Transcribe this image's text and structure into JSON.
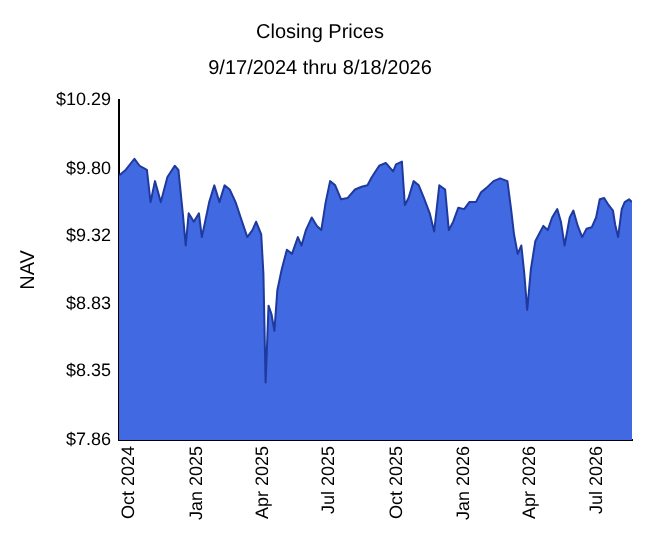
{
  "chart_data": {
    "type": "area",
    "title": "Closing Prices",
    "subtitle": "9/17/2024 thru 8/18/2026",
    "ylabel": "NAV",
    "x": [
      "2024-09-17",
      "2024-09-26",
      "2024-10-08",
      "2024-10-15",
      "2024-10-25",
      "2024-10-30",
      "2024-11-05",
      "2024-11-13",
      "2024-11-22",
      "2024-12-02",
      "2024-12-07",
      "2024-12-13",
      "2024-12-17",
      "2024-12-21",
      "2024-12-28",
      "2025-01-04",
      "2025-01-08",
      "2025-01-18",
      "2025-01-25",
      "2025-02-01",
      "2025-02-08",
      "2025-02-15",
      "2025-02-23",
      "2025-03-02",
      "2025-03-11",
      "2025-03-18",
      "2025-03-23",
      "2025-03-30",
      "2025-04-02",
      "2025-04-05",
      "2025-04-09",
      "2025-04-13",
      "2025-04-17",
      "2025-04-21",
      "2025-04-27",
      "2025-05-04",
      "2025-05-11",
      "2025-05-19",
      "2025-05-24",
      "2025-05-30",
      "2025-06-07",
      "2025-06-14",
      "2025-06-20",
      "2025-06-26",
      "2025-07-02",
      "2025-07-09",
      "2025-07-17",
      "2025-07-26",
      "2025-08-05",
      "2025-08-14",
      "2025-08-22",
      "2025-08-28",
      "2025-09-07",
      "2025-09-16",
      "2025-09-26",
      "2025-09-30",
      "2025-10-08",
      "2025-10-12",
      "2025-10-17",
      "2025-10-24",
      "2025-10-31",
      "2025-11-07",
      "2025-11-15",
      "2025-11-21",
      "2025-11-28",
      "2025-12-06",
      "2025-12-11",
      "2025-12-17",
      "2025-12-24",
      "2026-01-01",
      "2026-01-08",
      "2026-01-17",
      "2026-01-24",
      "2026-01-31",
      "2026-02-10",
      "2026-02-19",
      "2026-03-01",
      "2026-03-06",
      "2026-03-10",
      "2026-03-15",
      "2026-03-20",
      "2026-03-24",
      "2026-03-28",
      "2026-04-02",
      "2026-04-08",
      "2026-04-13",
      "2026-04-19",
      "2026-04-25",
      "2026-05-01",
      "2026-05-08",
      "2026-05-13",
      "2026-05-18",
      "2026-05-25",
      "2026-05-30",
      "2026-06-05",
      "2026-06-11",
      "2026-06-17",
      "2026-06-24",
      "2026-06-30",
      "2026-07-05",
      "2026-07-11",
      "2026-07-17",
      "2026-07-23",
      "2026-07-26",
      "2026-07-30",
      "2026-08-04",
      "2026-08-08",
      "2026-08-14",
      "2026-08-18"
    ],
    "series": [
      {
        "color": "#4169e1",
        "values": [
          9.75,
          9.79,
          9.87,
          9.82,
          9.79,
          9.56,
          9.71,
          9.56,
          9.74,
          9.82,
          9.79,
          9.48,
          9.25,
          9.48,
          9.42,
          9.48,
          9.31,
          9.56,
          9.68,
          9.56,
          9.68,
          9.65,
          9.56,
          9.45,
          9.31,
          9.36,
          9.42,
          9.33,
          9.05,
          8.27,
          8.82,
          8.76,
          8.64,
          8.93,
          9.08,
          9.22,
          9.19,
          9.31,
          9.25,
          9.36,
          9.45,
          9.39,
          9.36,
          9.56,
          9.71,
          9.68,
          9.58,
          9.59,
          9.65,
          9.67,
          9.68,
          9.74,
          9.82,
          9.84,
          9.78,
          9.83,
          9.85,
          9.54,
          9.59,
          9.71,
          9.68,
          9.59,
          9.48,
          9.35,
          9.68,
          9.65,
          9.36,
          9.42,
          9.52,
          9.51,
          9.56,
          9.56,
          9.63,
          9.66,
          9.71,
          9.73,
          9.71,
          9.51,
          9.33,
          9.19,
          9.25,
          9.05,
          8.79,
          9.08,
          9.28,
          9.33,
          9.39,
          9.36,
          9.45,
          9.51,
          9.42,
          9.25,
          9.45,
          9.5,
          9.39,
          9.31,
          9.37,
          9.38,
          9.45,
          9.58,
          9.59,
          9.54,
          9.5,
          9.4,
          9.31,
          9.51,
          9.56,
          9.58,
          9.56
        ]
      }
    ],
    "xlim": [
      "2024-09-17",
      "2026-08-18"
    ],
    "xticks": [
      {
        "value": "2024-10-01",
        "label": "Oct 2024"
      },
      {
        "value": "2025-01-01",
        "label": "Jan 2025"
      },
      {
        "value": "2025-04-01",
        "label": "Apr 2025"
      },
      {
        "value": "2025-07-01",
        "label": "Jul 2025"
      },
      {
        "value": "2025-10-01",
        "label": "Oct 2025"
      },
      {
        "value": "2026-01-01",
        "label": "Jan 2026"
      },
      {
        "value": "2026-04-01",
        "label": "Apr 2026"
      },
      {
        "value": "2026-07-01",
        "label": "Jul 2026"
      }
    ],
    "ylim": [
      7.86,
      10.29
    ],
    "yticks": [
      {
        "value": 7.86,
        "label": "$7.86"
      },
      {
        "value": 8.35,
        "label": "$8.35"
      },
      {
        "value": 8.83,
        "label": "$8.83"
      },
      {
        "value": 9.32,
        "label": "$9.32"
      },
      {
        "value": 9.8,
        "label": "$9.80"
      },
      {
        "value": 10.29,
        "label": "$10.29"
      }
    ],
    "grid": false,
    "legend": false
  }
}
